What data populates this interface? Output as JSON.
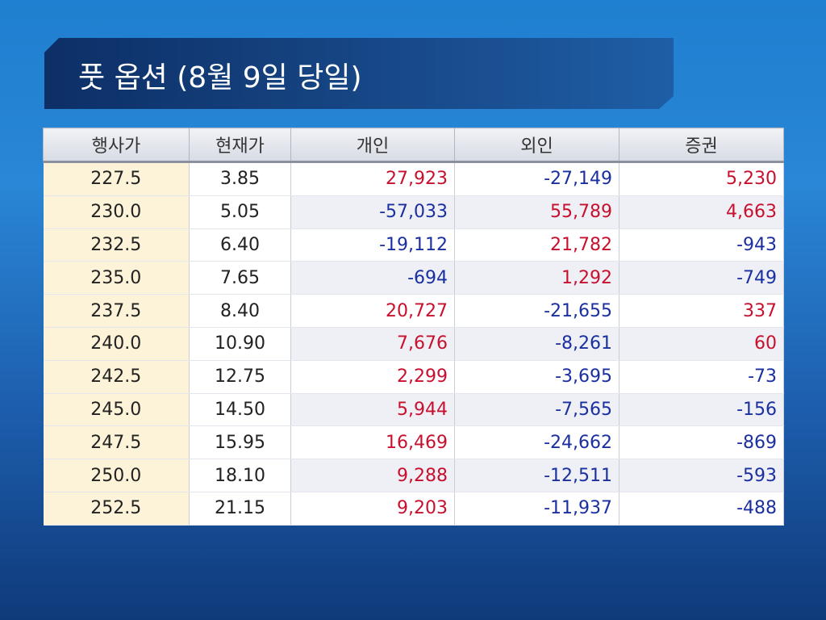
{
  "header": {
    "title": "풋 옵션 (8월 9일 당일)"
  },
  "table": {
    "columns": [
      "행사가",
      "현재가",
      "개인",
      "외인",
      "증권"
    ],
    "rows": [
      [
        "227.5",
        "3.85",
        "27,923",
        "-27,149",
        "5,230"
      ],
      [
        "230.0",
        "5.05",
        "-57,033",
        "55,789",
        "4,663"
      ],
      [
        "232.5",
        "6.40",
        "-19,112",
        "21,782",
        "-943"
      ],
      [
        "235.0",
        "7.65",
        "-694",
        "1,292",
        "-749"
      ],
      [
        "237.5",
        "8.40",
        "20,727",
        "-21,655",
        "337"
      ],
      [
        "240.0",
        "10.90",
        "7,676",
        "-8,261",
        "60"
      ],
      [
        "242.5",
        "12.75",
        "2,299",
        "-3,695",
        "-73"
      ],
      [
        "245.0",
        "14.50",
        "5,944",
        "-7,565",
        "-156"
      ],
      [
        "247.5",
        "15.95",
        "16,469",
        "-24,662",
        "-869"
      ],
      [
        "250.0",
        "18.10",
        "9,288",
        "-12,511",
        "-593"
      ],
      [
        "252.5",
        "21.15",
        "9,203",
        "-11,937",
        "-488"
      ]
    ]
  }
}
